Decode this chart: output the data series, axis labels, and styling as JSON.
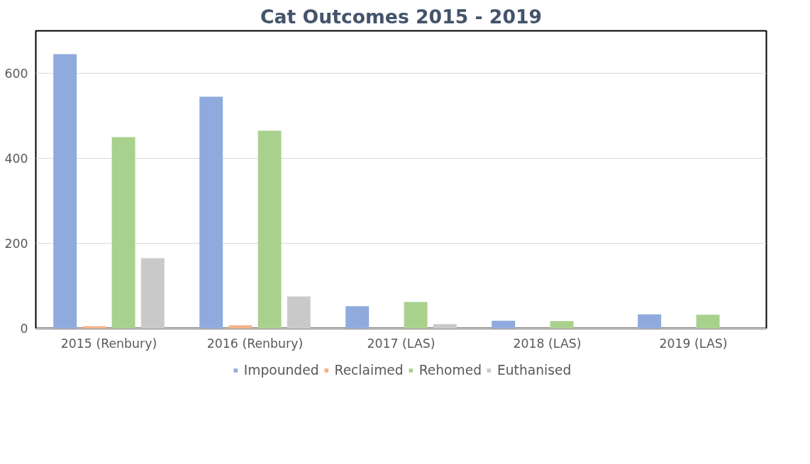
{
  "chart_data": {
    "type": "bar",
    "title": "Cat Outcomes 2015 - 2019",
    "categories": [
      "2015 (Renbury)",
      "2016 (Renbury)",
      "2017 (LAS)",
      "2018 (LAS)",
      "2019 (LAS)"
    ],
    "series": [
      {
        "name": "Impounded",
        "color": "#8faadc",
        "values": [
          645,
          545,
          52,
          18,
          33
        ]
      },
      {
        "name": "Reclaimed",
        "color": "#f4b183",
        "values": [
          5,
          7,
          0,
          0,
          0
        ]
      },
      {
        "name": "Rehomed",
        "color": "#a9d18e",
        "values": [
          450,
          465,
          62,
          17,
          32
        ]
      },
      {
        "name": "Euthanised",
        "color": "#c9c9c9",
        "values": [
          165,
          75,
          10,
          0,
          0
        ]
      }
    ],
    "ylim": [
      0,
      700
    ],
    "yticks": [
      0,
      200,
      400,
      600
    ],
    "grid": "y",
    "legend": "bottom"
  }
}
